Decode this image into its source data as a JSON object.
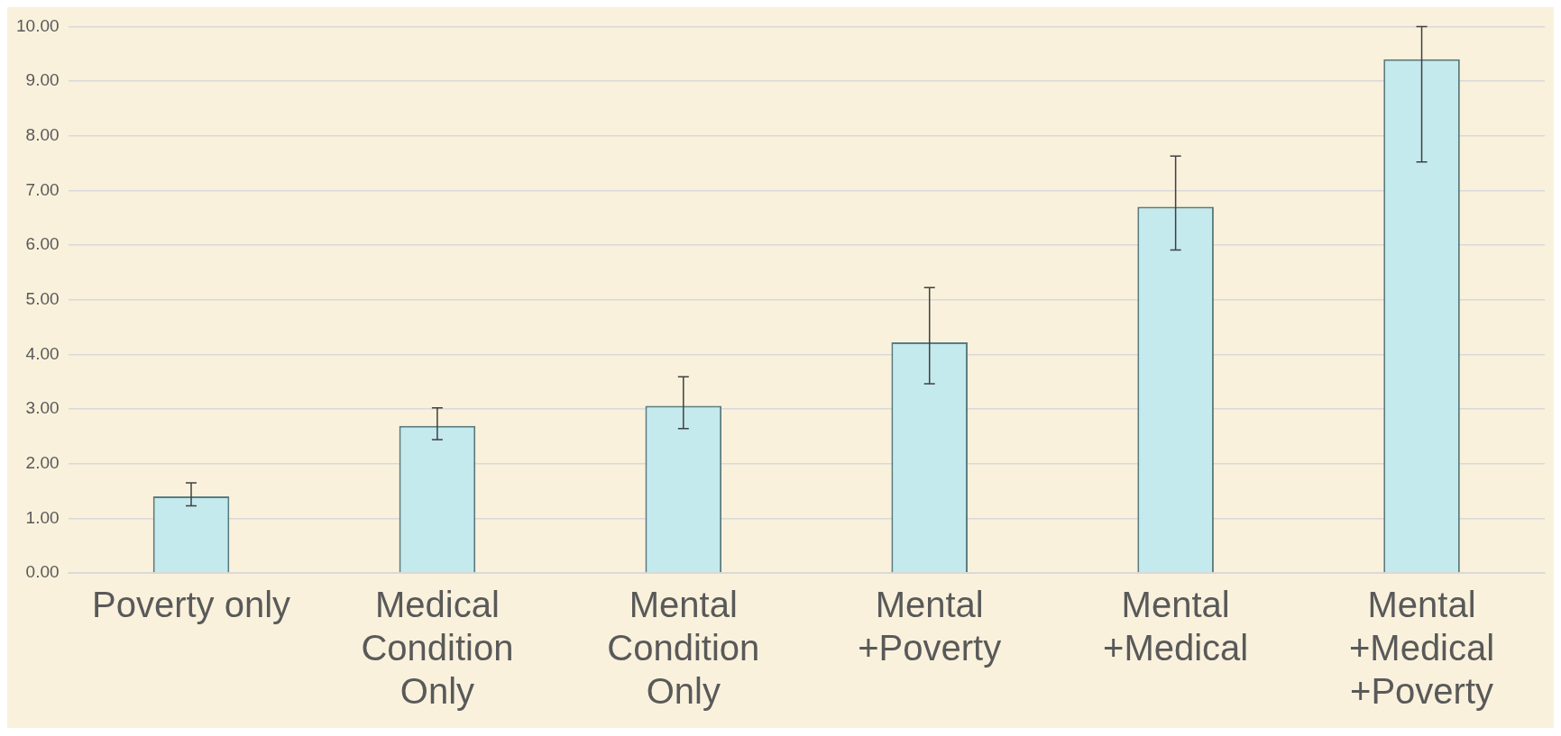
{
  "chart_data": {
    "type": "bar",
    "categories": [
      "Poverty only",
      "Medical Condition Only",
      "Mental Condition Only",
      "Mental +Poverty",
      "Mental +Medical",
      "Mental +Medical +Poverty"
    ],
    "values": [
      1.4,
      2.69,
      3.06,
      4.22,
      6.7,
      9.4
    ],
    "errors": [
      [
        1.23,
        1.65
      ],
      [
        2.44,
        3.02
      ],
      [
        2.64,
        3.59
      ],
      [
        3.46,
        5.22
      ],
      [
        5.91,
        7.63
      ],
      [
        7.52,
        10.0
      ]
    ],
    "color": "#c4eaee",
    "ylim": [
      0,
      10
    ],
    "yticks": [
      {
        "value": 0,
        "label": "0.00"
      },
      {
        "value": 1,
        "label": "1.00"
      },
      {
        "value": 2,
        "label": "2.00"
      },
      {
        "value": 3,
        "label": "3.00"
      },
      {
        "value": 4,
        "label": "4.00"
      },
      {
        "value": 5,
        "label": "5.00"
      },
      {
        "value": 6,
        "label": "6.00"
      },
      {
        "value": 7,
        "label": "7.00"
      },
      {
        "value": 8,
        "label": "8.00"
      },
      {
        "value": 9,
        "label": "9.00"
      },
      {
        "value": 10,
        "label": "10.00"
      }
    ],
    "grid": "y"
  }
}
